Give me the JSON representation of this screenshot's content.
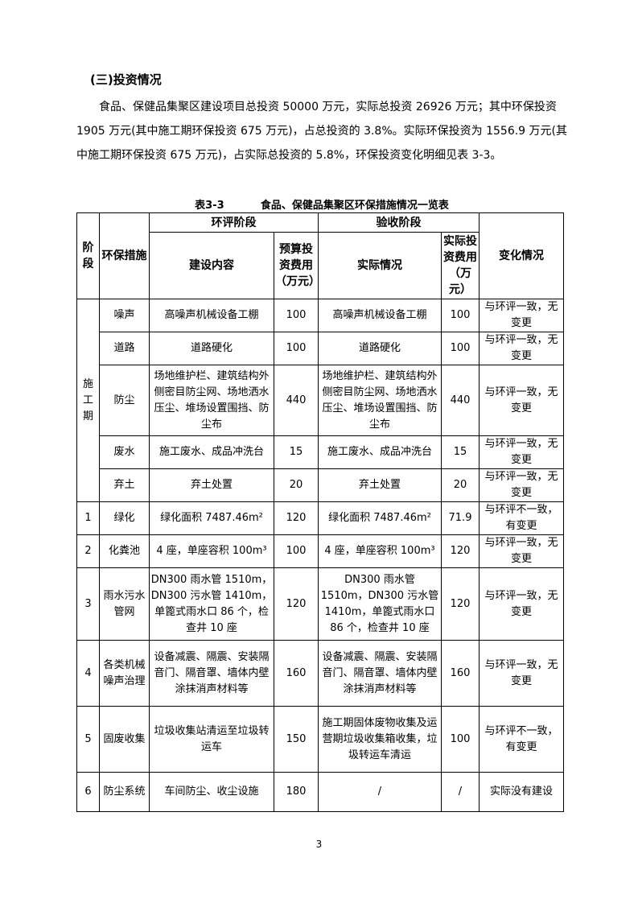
{
  "heading": "(三)投资情况",
  "paragraph": "食品、保健品集聚区建设项目总投资 50000 万元，实际总投资 26926 万元；其中环保投资 1905 万元(其中施工期环保投资 675 万元)，占总投资的 3.8%。实际环保投资为 1556.9 万元(其中施工期环保投资 675 万元)，占实际总投资的 5.8%，环保投资变化明细见表 3-3。",
  "table": {
    "caption": "表3-3          食品、保健品集聚区环保措施情况一览表",
    "headers": {
      "stage": "阶段",
      "measure": "环保措施",
      "eia": "环评阶段",
      "acceptance": "验收阶段",
      "change": "变化情况",
      "content": "建设内容",
      "budget": "预算投资费用（万元）",
      "actual": "实际情况",
      "actual_cost": "实际投资费用（万元）"
    },
    "construction_stage": "施工期",
    "rows": [
      {
        "stage": "",
        "measure": "噪声",
        "content": "高噪声机械设备工棚",
        "budget": "100",
        "actual": "高噪声机械设备工棚",
        "actual_cost": "100",
        "change": "与环评一致，无变更"
      },
      {
        "stage": "",
        "measure": "道路",
        "content": "道路硬化",
        "budget": "100",
        "actual": "道路硬化",
        "actual_cost": "100",
        "change": "与环评一致，无变更"
      },
      {
        "stage": "",
        "measure": "防尘",
        "content": "场地维护栏、建筑结构外侧密目防尘网、场地洒水压尘、堆场设置围挡、防尘布",
        "budget": "440",
        "actual": "场地维护栏、建筑结构外侧密目防尘网、场地洒水压尘、堆场设置围挡、防尘布",
        "actual_cost": "440",
        "change": "与环评一致，无变更"
      },
      {
        "stage": "",
        "measure": "废水",
        "content": "施工废水、成品冲洗台",
        "budget": "15",
        "actual": "施工废水、成品冲洗台",
        "actual_cost": "15",
        "change": "与环评一致，无变更"
      },
      {
        "stage": "",
        "measure": "弃土",
        "content": "弃土处置",
        "budget": "20",
        "actual": "弃土处置",
        "actual_cost": "20",
        "change": "与环评一致，无变更"
      },
      {
        "stage": "1",
        "measure": "绿化",
        "content": "绿化面积 7487.46m²",
        "budget": "120",
        "actual": "绿化面积 7487.46m²",
        "actual_cost": "71.9",
        "change": "与环评不一致，有变更"
      },
      {
        "stage": "2",
        "measure": "化粪池",
        "content": "4 座，单座容积 100m³",
        "budget": "100",
        "actual": "4 座，单座容积 100m³",
        "actual_cost": "120",
        "change": "与环评一致，无变更"
      },
      {
        "stage": "3",
        "measure": "雨水污水管网",
        "content": "DN300 雨水管 1510m，DN300 污水管 1410m，单篦式雨水口 86 个，检查井 10 座",
        "budget": "120",
        "actual": "DN300 雨水管 1510m，DN300 污水管 1410m，单篦式雨水口 86 个，检查井 10 座",
        "actual_cost": "120",
        "change": "与环评一致，无变更"
      },
      {
        "stage": "4",
        "measure": "各类机械噪声治理",
        "content": "设备减震、隔震、安装隔音门、隔音罩、墙体内壁涂抹消声材料等",
        "budget": "160",
        "actual": "设备减震、隔震、安装隔音门、隔音罩、墙体内壁涂抹消声材料等",
        "actual_cost": "160",
        "change": "与环评一致，无变更"
      },
      {
        "stage": "5",
        "measure": "固废收集",
        "content": "垃圾收集站清运至垃圾转运车",
        "budget": "150",
        "actual": "施工期固体废物收集及运营期垃圾收集箱收集，垃圾转运车清运",
        "actual_cost": "100",
        "change": "与环评不一致，有变更"
      },
      {
        "stage": "6",
        "measure": "防尘系统",
        "content": "车间防尘、收尘设施",
        "budget": "180",
        "actual": "/",
        "actual_cost": "/",
        "change": "实际没有建设"
      }
    ]
  },
  "page_number": "3"
}
